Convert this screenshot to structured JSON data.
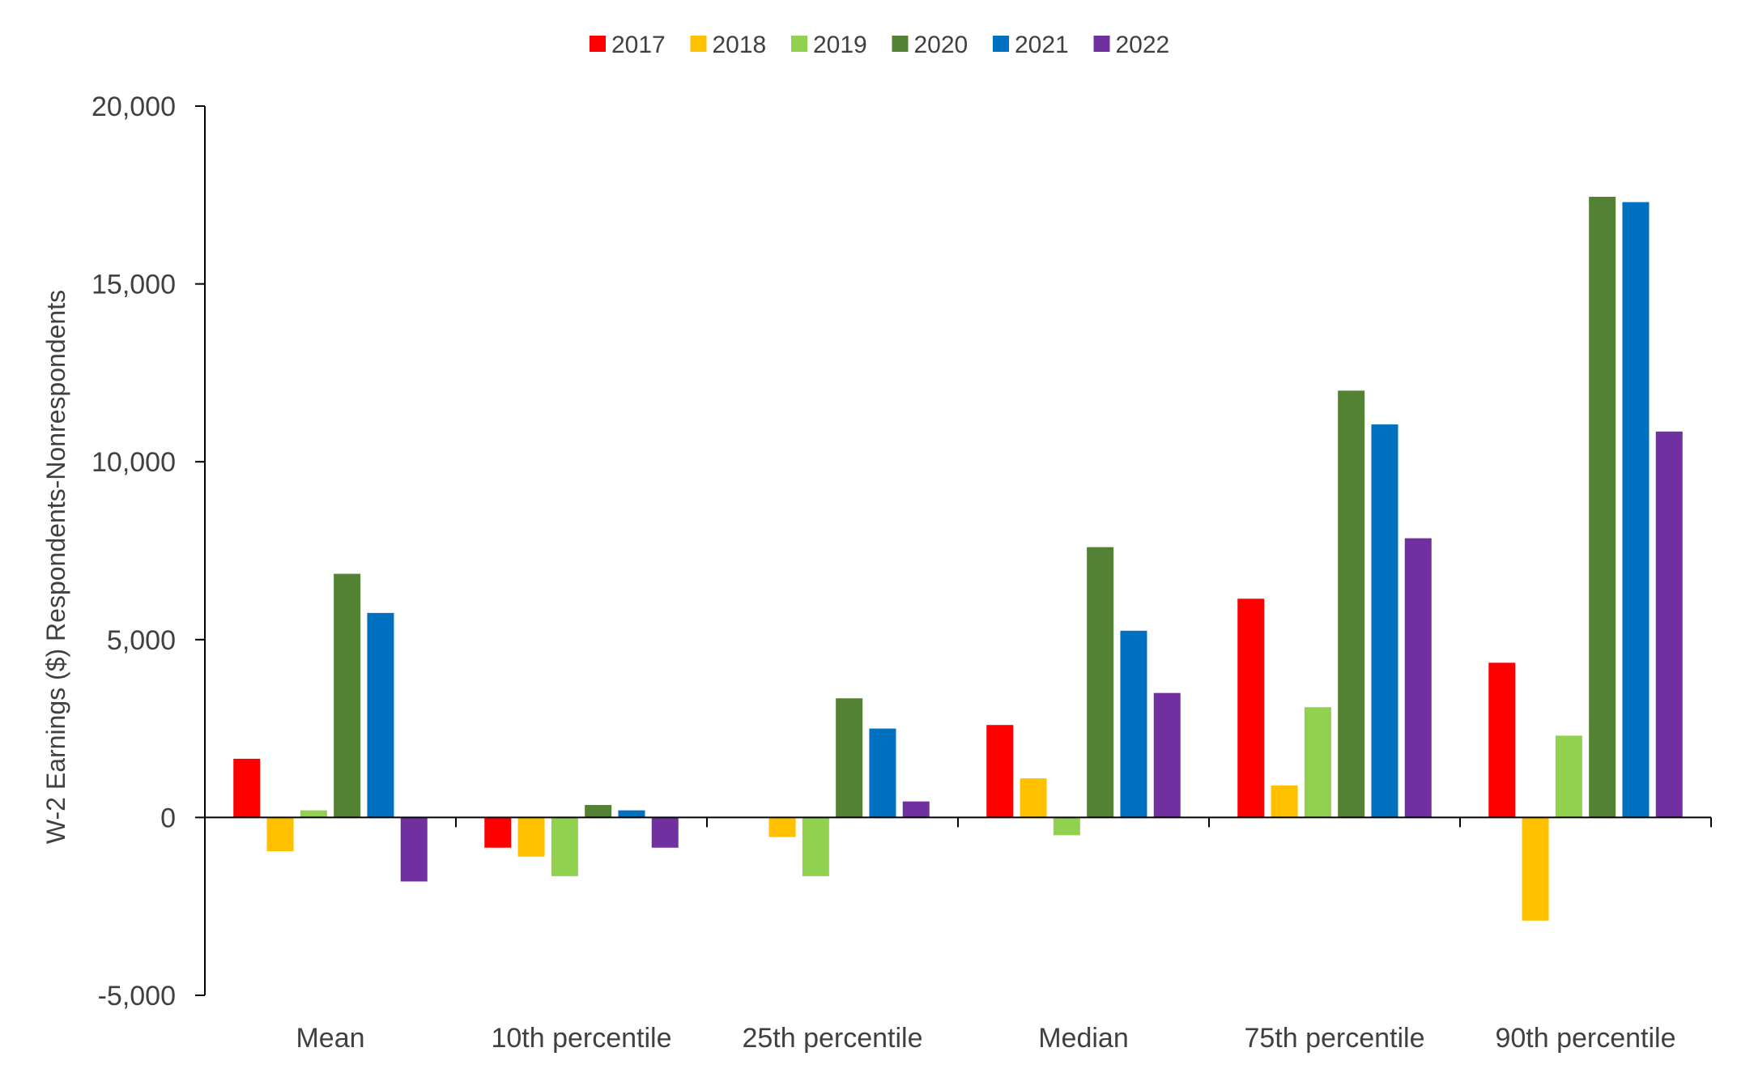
{
  "chart_data": {
    "type": "bar",
    "title": "",
    "xlabel": "",
    "ylabel": "W-2 Earnings ($) Respondents-Nonrespondents",
    "ylim": [
      -5000,
      20000
    ],
    "yticks": [
      -5000,
      0,
      5000,
      10000,
      15000,
      20000
    ],
    "ytick_labels": [
      "-5,000",
      "0",
      "5,000",
      "10,000",
      "15,000",
      "20,000"
    ],
    "grid": false,
    "legend_position": "top",
    "categories": [
      "Mean",
      "10th percentile",
      "25th percentile",
      "Median",
      "75th percentile",
      "90th percentile"
    ],
    "series": [
      {
        "name": "2017",
        "color": "#ff0000",
        "values": [
          1650,
          -850,
          0,
          2600,
          6150,
          4350
        ]
      },
      {
        "name": "2018",
        "color": "#ffc000",
        "values": [
          -950,
          -1100,
          -550,
          1100,
          900,
          -2900
        ]
      },
      {
        "name": "2019",
        "color": "#92d050",
        "values": [
          200,
          -1650,
          -1650,
          -500,
          3100,
          2300
        ]
      },
      {
        "name": "2020",
        "color": "#548235",
        "values": [
          6850,
          350,
          3350,
          7600,
          12000,
          17450
        ]
      },
      {
        "name": "2021",
        "color": "#0070c0",
        "values": [
          5750,
          200,
          2500,
          5250,
          11050,
          17300
        ]
      },
      {
        "name": "2022",
        "color": "#7030a0",
        "values": [
          -1800,
          -850,
          450,
          3500,
          7850,
          10850
        ]
      }
    ]
  }
}
